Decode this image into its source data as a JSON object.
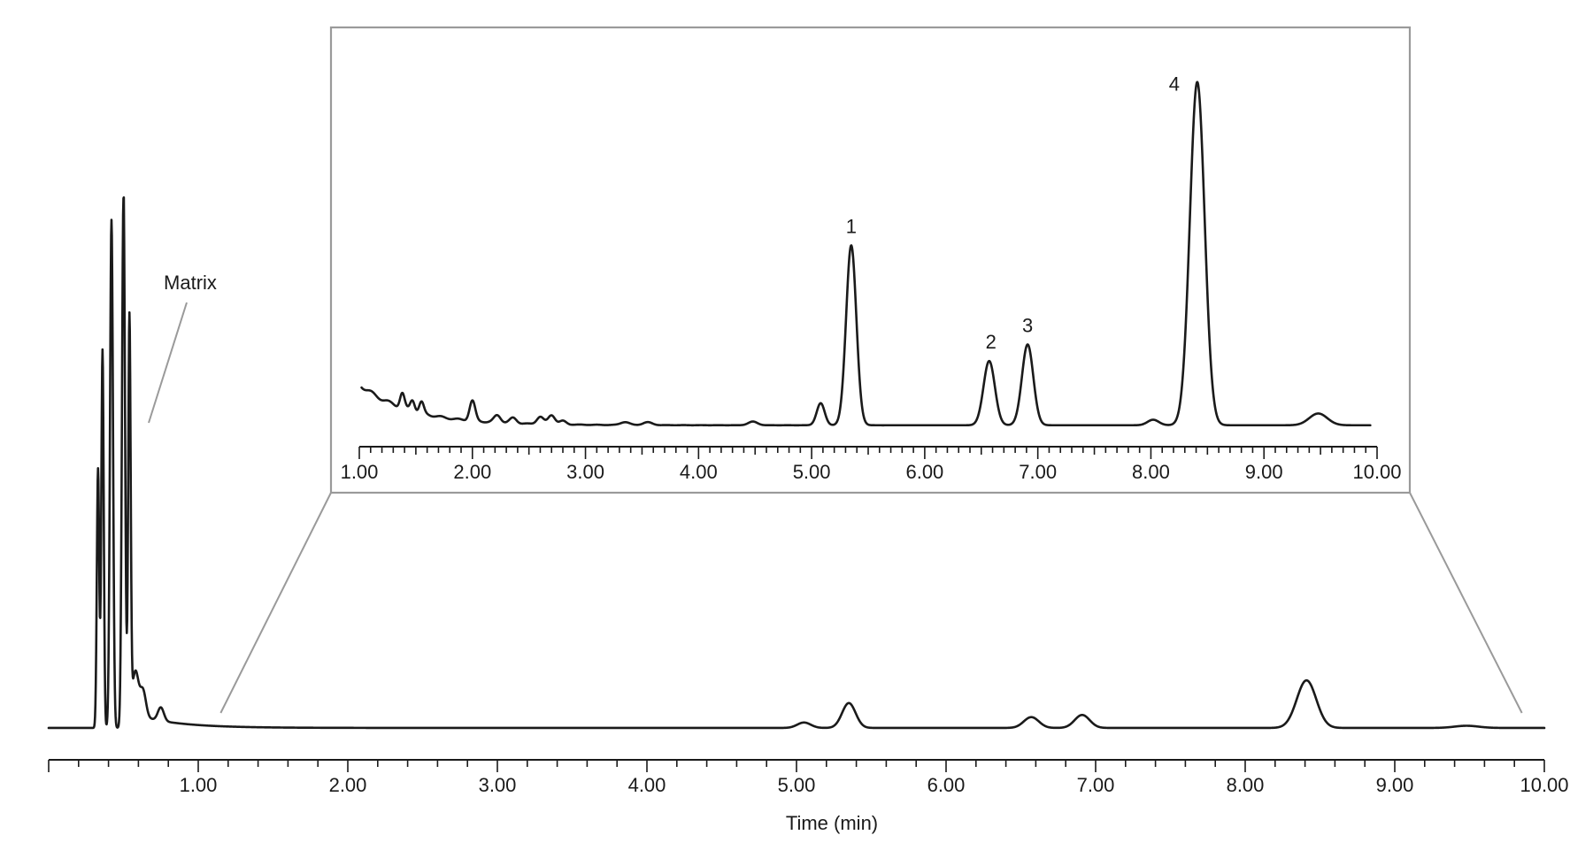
{
  "colors": {
    "trace": "#1a1a1a",
    "inset_frame": "#9a9a9a"
  },
  "chart_data": [
    {
      "type": "line",
      "title": "",
      "xlabel": "Time (min)",
      "ylabel": "",
      "xlim": [
        0.0,
        10.0
      ],
      "ylim": [
        0,
        100
      ],
      "grid": false,
      "x_ticks": [
        "1.00",
        "2.00",
        "3.00",
        "4.00",
        "5.00",
        "6.00",
        "7.00",
        "8.00",
        "9.00",
        "10.00"
      ],
      "baseline": 0.5,
      "matrix_label": "Matrix",
      "matrix_peaks": [
        {
          "t": 0.33,
          "h": 48,
          "w": 0.008
        },
        {
          "t": 0.36,
          "h": 70,
          "w": 0.008
        },
        {
          "t": 0.42,
          "h": 94,
          "w": 0.01
        },
        {
          "t": 0.5,
          "h": 98,
          "w": 0.01
        },
        {
          "t": 0.54,
          "h": 73,
          "w": 0.008
        },
        {
          "t": 0.58,
          "h": 8,
          "w": 0.02
        },
        {
          "t": 0.63,
          "h": 5,
          "w": 0.02
        },
        {
          "t": 0.75,
          "h": 2.5,
          "w": 0.02
        }
      ],
      "peaks": [
        {
          "label": "",
          "t": 5.05,
          "h": 1.0,
          "w": 0.045
        },
        {
          "label": "1",
          "t": 5.35,
          "h": 4.6,
          "w": 0.045
        },
        {
          "label": "2",
          "t": 6.57,
          "h": 2.0,
          "w": 0.05
        },
        {
          "label": "3",
          "t": 6.91,
          "h": 2.4,
          "w": 0.05
        },
        {
          "label": "4",
          "t": 8.41,
          "h": 8.8,
          "w": 0.065
        },
        {
          "label": "",
          "t": 9.48,
          "h": 0.4,
          "w": 0.08
        }
      ]
    },
    {
      "type": "line",
      "title": "",
      "xlabel": "",
      "ylabel": "",
      "xlim": [
        1.0,
        10.0
      ],
      "ylim": [
        0,
        100
      ],
      "grid": false,
      "x_ticks": [
        "1.00",
        "2.00",
        "3.00",
        "4.00",
        "5.00",
        "6.00",
        "7.00",
        "8.00",
        "9.00",
        "10.00"
      ],
      "baseline": 0.3,
      "start_level": 11.5,
      "noise_peaks": [
        {
          "t": 1.38,
          "h": 4.0,
          "w": 0.02
        },
        {
          "t": 1.47,
          "h": 3.0,
          "w": 0.02
        },
        {
          "t": 1.55,
          "h": 3.0,
          "w": 0.02
        },
        {
          "t": 2.0,
          "h": 5.5,
          "w": 0.025
        },
        {
          "t": 2.22,
          "h": 2.0,
          "w": 0.03
        },
        {
          "t": 2.36,
          "h": 1.5,
          "w": 0.03
        },
        {
          "t": 2.6,
          "h": 2.0,
          "w": 0.03
        },
        {
          "t": 2.7,
          "h": 2.5,
          "w": 0.03
        },
        {
          "t": 2.8,
          "h": 1.0,
          "w": 0.03
        },
        {
          "t": 3.35,
          "h": 0.8,
          "w": 0.04
        },
        {
          "t": 3.55,
          "h": 0.8,
          "w": 0.04
        },
        {
          "t": 4.48,
          "h": 1.0,
          "w": 0.04
        }
      ],
      "peaks": [
        {
          "label": "",
          "t": 5.08,
          "h": 6.0,
          "w": 0.035
        },
        {
          "label": "1",
          "t": 5.35,
          "h": 49,
          "w": 0.045
        },
        {
          "label": "2",
          "t": 6.57,
          "h": 17.5,
          "w": 0.05
        },
        {
          "label": "3",
          "t": 6.91,
          "h": 22,
          "w": 0.05
        },
        {
          "label": "",
          "t": 8.02,
          "h": 1.5,
          "w": 0.05
        },
        {
          "label": "4",
          "t": 8.41,
          "h": 93.5,
          "w": 0.065
        },
        {
          "label": "",
          "t": 9.48,
          "h": 3.2,
          "w": 0.08
        }
      ]
    }
  ]
}
